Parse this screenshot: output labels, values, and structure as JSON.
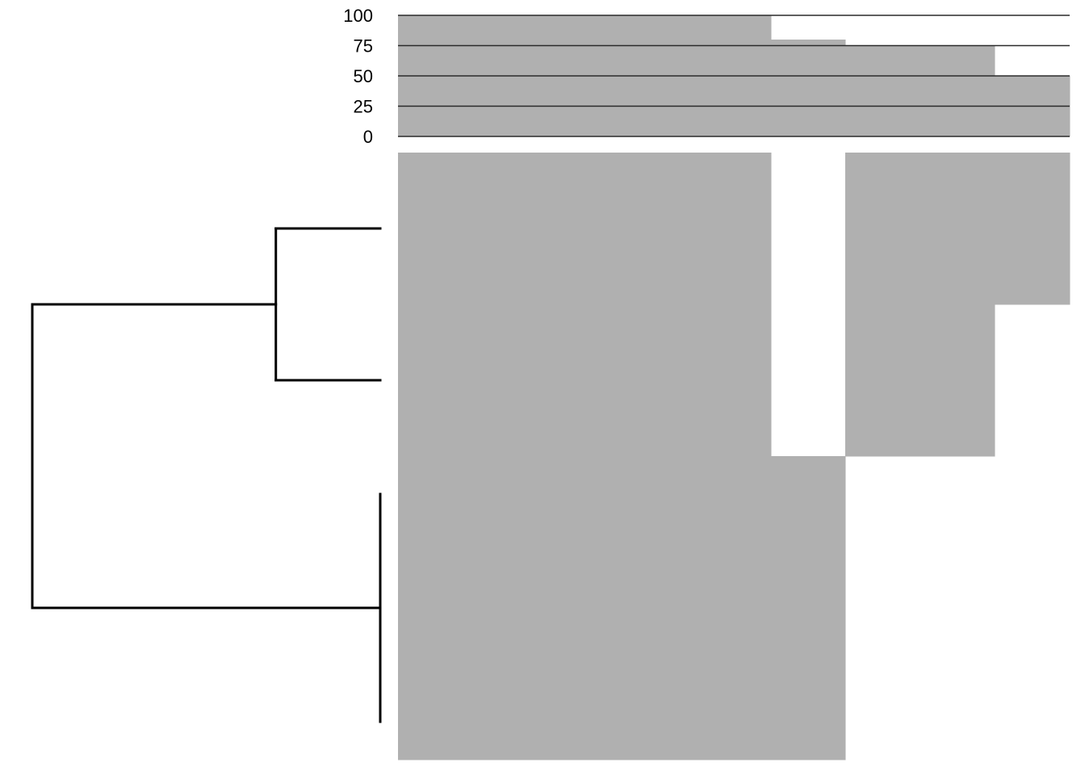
{
  "chart_data": {
    "type": "heatmap",
    "title": "",
    "xlabel": "",
    "ylabel": "",
    "colors": {
      "filled": "#b0b0b0",
      "empty": "#ffffff",
      "line": "#000000",
      "rule": "#2a2a2a"
    },
    "top_bar": {
      "type": "area",
      "ylim": [
        0,
        100
      ],
      "yticks": [
        "100",
        "75",
        "50",
        "25",
        "0"
      ],
      "ytick_values": [
        100,
        75,
        50,
        25,
        0
      ],
      "column_values": [
        100,
        100,
        100,
        100,
        100,
        80,
        75,
        75,
        50
      ],
      "grid": true
    },
    "matrix": [
      [
        1,
        1,
        1,
        1,
        1,
        0,
        1,
        1,
        1
      ],
      [
        1,
        1,
        1,
        1,
        1,
        0,
        1,
        1,
        1
      ],
      [
        1,
        1,
        1,
        1,
        1,
        0,
        1,
        1,
        0
      ],
      [
        1,
        1,
        1,
        1,
        1,
        0,
        1,
        1,
        0
      ],
      [
        1,
        1,
        1,
        1,
        1,
        1,
        0,
        0,
        0
      ],
      [
        1,
        1,
        1,
        1,
        1,
        1,
        0,
        0,
        0
      ],
      [
        1,
        1,
        1,
        1,
        1,
        1,
        0,
        0,
        0
      ],
      [
        1,
        1,
        1,
        1,
        1,
        1,
        0,
        0,
        0
      ]
    ],
    "dendrogram": {
      "leaves": 8,
      "merges": [
        {
          "left": [
            0,
            1
          ],
          "right": [
            2,
            3
          ],
          "height": 0.3
        },
        {
          "left": [
            4,
            5,
            6,
            7
          ],
          "right": [],
          "height": 0.0
        },
        {
          "left": [
            0,
            1,
            2,
            3
          ],
          "right": [
            4,
            5,
            6,
            7
          ],
          "height": 1.0
        }
      ]
    }
  }
}
